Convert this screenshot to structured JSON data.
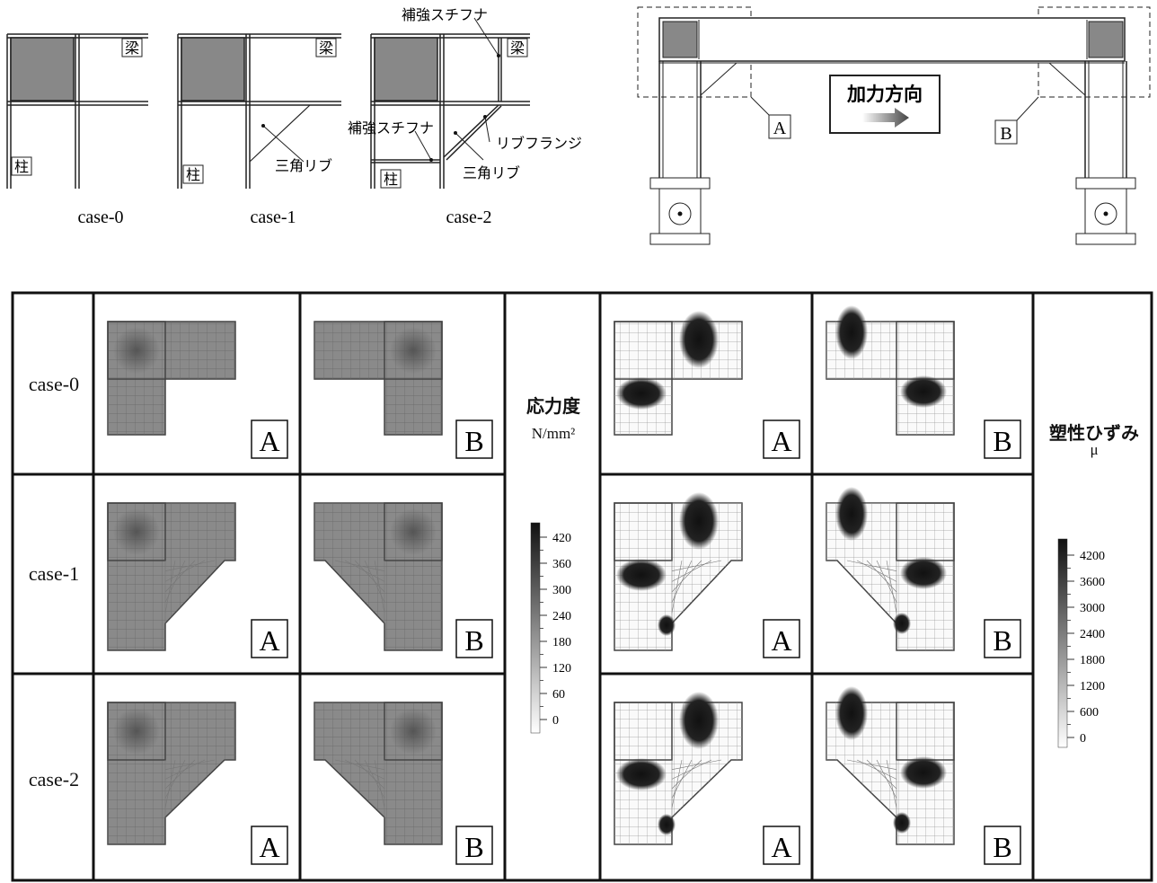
{
  "top": {
    "beam_label": "梁",
    "column_label": "柱",
    "stiffener_label": "補強スチフナ",
    "triangle_rib_label": "三角リブ",
    "rib_flange_label": "リブフランジ",
    "cases": [
      "case-0",
      "case-1",
      "case-2"
    ]
  },
  "frame": {
    "load_direction_label": "加力方向",
    "joint_labels": [
      "A",
      "B"
    ]
  },
  "grid": {
    "row_labels": [
      "case-0",
      "case-1",
      "case-2"
    ],
    "cell_tags": [
      "A",
      "B",
      "A",
      "B"
    ],
    "stress_legend": {
      "title": "応力度",
      "unit": "N/mm²",
      "ticks": [
        "420",
        "360",
        "300",
        "240",
        "180",
        "120",
        "60",
        "0"
      ]
    },
    "strain_legend": {
      "title": "塑性ひずみ",
      "unit": "μ",
      "ticks": [
        "4200",
        "3600",
        "3000",
        "2400",
        "1800",
        "1200",
        "600",
        "0"
      ]
    }
  }
}
